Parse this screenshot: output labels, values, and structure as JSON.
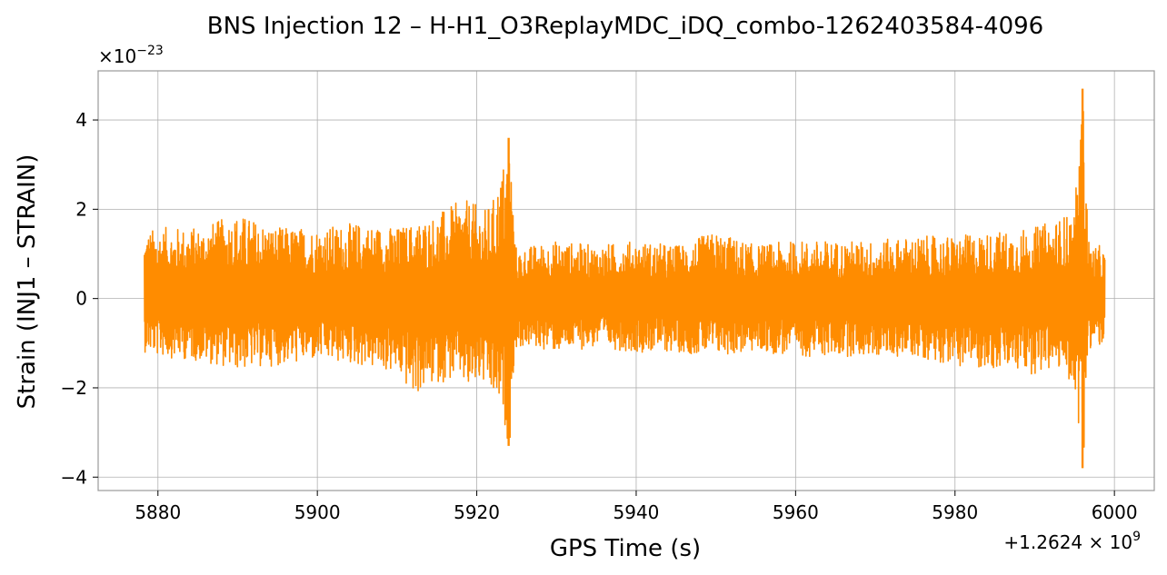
{
  "chart_data": {
    "type": "line",
    "title": "BNS Injection 12 – H-H1_O3ReplayMDC_iDQ_combo-1262403584-4096",
    "xlabel": "GPS Time (s)",
    "ylabel": "Strain (INJ1 – STRAIN)",
    "x_offset_label": "+1.2624 × 10",
    "x_offset_exp": "9",
    "y_multiplier_label": "×10",
    "y_multiplier_exp": "−23",
    "xlim": [
      5872.5,
      6005.0
    ],
    "ylim": [
      -4.3,
      5.1
    ],
    "x_ticks": [
      5880,
      5900,
      5920,
      5940,
      5960,
      5980,
      6000
    ],
    "x_tick_labels": [
      "5880",
      "5900",
      "5920",
      "5940",
      "5960",
      "5980",
      "6000"
    ],
    "y_ticks": [
      -4,
      -2,
      0,
      2,
      4
    ],
    "y_tick_labels": [
      "−4",
      "−2",
      "0",
      "2",
      "4"
    ],
    "grid": true,
    "series": [
      {
        "color": "#ff8c00",
        "envelope": {
          "x": [
            5878.3,
            5880,
            5885,
            5890,
            5895,
            5900,
            5905,
            5910,
            5912,
            5915,
            5918,
            5919,
            5920,
            5921,
            5922,
            5923,
            5924.0,
            5924.3,
            5924.5,
            5924.8,
            5925.5,
            5927,
            5930,
            5935,
            5940,
            5945,
            5950,
            5955,
            5960,
            5965,
            5970,
            5975,
            5980,
            5985,
            5990,
            5993,
            5995,
            5996.0,
            5996.4,
            5996.7,
            5997.0,
            5998,
            5998.8
          ],
          "upper": [
            1.5,
            1.6,
            1.6,
            1.9,
            1.6,
            1.6,
            1.7,
            1.6,
            1.7,
            1.9,
            2.2,
            2.2,
            2.1,
            2.0,
            2.2,
            2.8,
            3.6,
            3.3,
            2.5,
            1.2,
            1.1,
            1.2,
            1.3,
            1.2,
            1.3,
            1.2,
            1.5,
            1.2,
            1.3,
            1.3,
            1.3,
            1.4,
            1.4,
            1.5,
            1.6,
            1.8,
            2.0,
            4.7,
            3.5,
            1.4,
            1.2,
            1.2,
            1.1
          ],
          "lower": [
            -1.2,
            -1.3,
            -1.4,
            -1.6,
            -1.5,
            -1.4,
            -1.5,
            -1.7,
            -2.2,
            -1.9,
            -1.8,
            -2.2,
            -1.9,
            -2.0,
            -2.3,
            -2.5,
            -3.3,
            -3.0,
            -1.9,
            -1.2,
            -1.1,
            -1.1,
            -1.2,
            -1.1,
            -1.2,
            -1.2,
            -1.3,
            -1.2,
            -1.3,
            -1.3,
            -1.3,
            -1.3,
            -1.5,
            -1.6,
            -1.7,
            -1.6,
            -2.0,
            -3.8,
            -2.8,
            -1.3,
            -1.1,
            -1.1,
            -1.1
          ]
        }
      }
    ]
  }
}
